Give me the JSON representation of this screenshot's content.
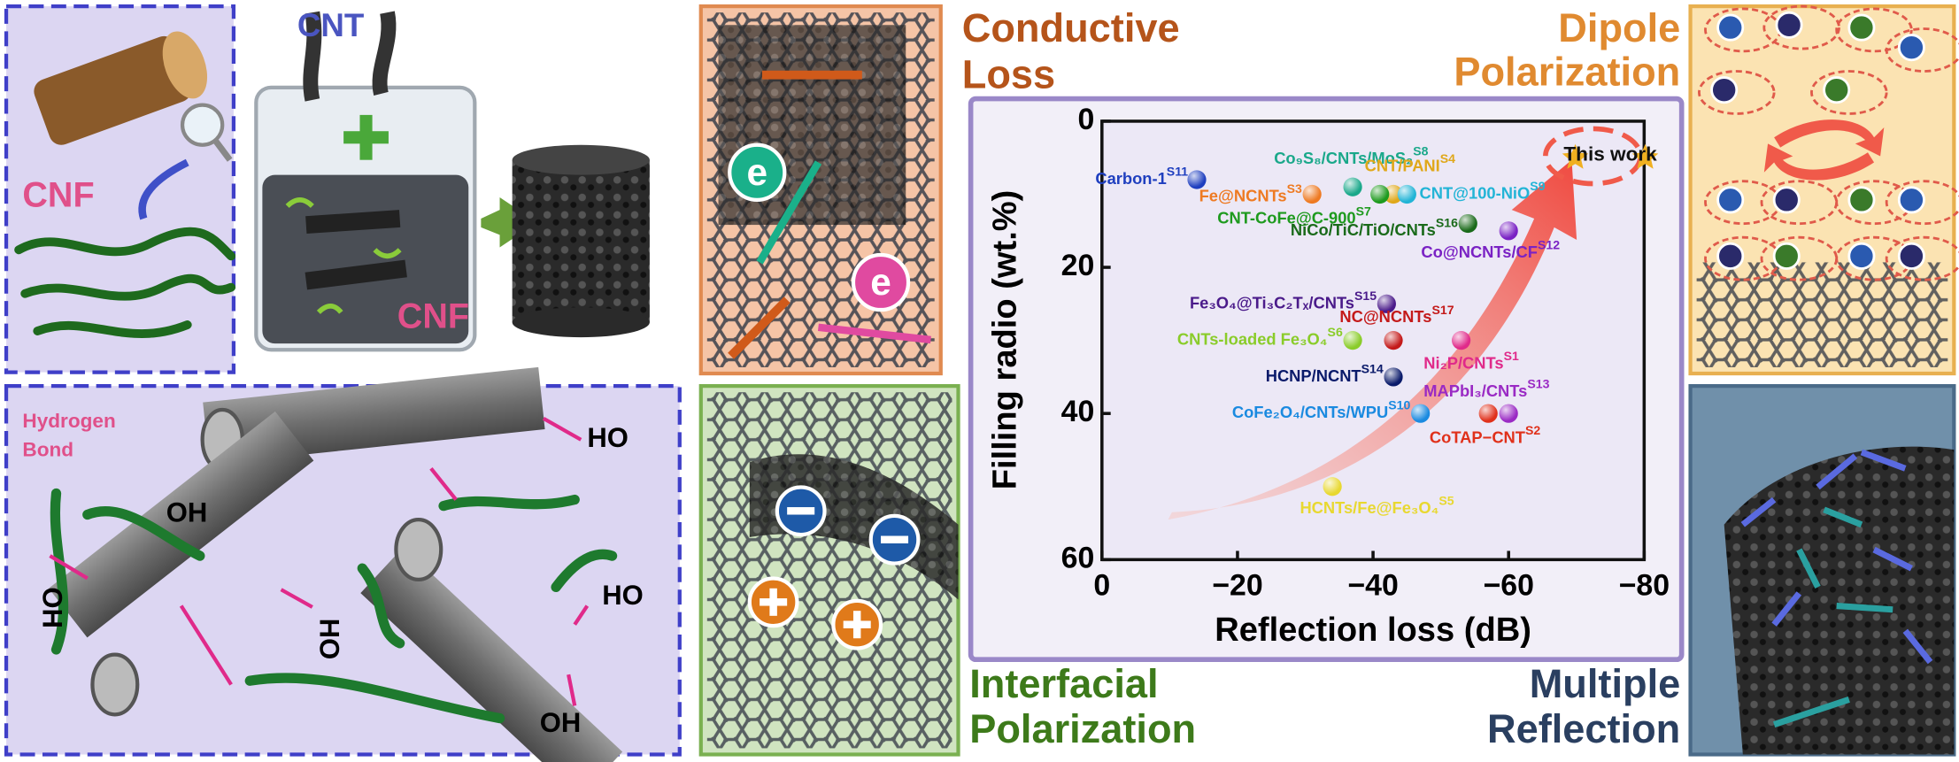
{
  "labels": {
    "cnt": "CNT",
    "cnf": [
      "CNF",
      "CNF"
    ],
    "hydrogen_bond": [
      "Hydrogen",
      "Bond"
    ],
    "hydroxyl": [
      "HO",
      "OH",
      "HO",
      "HO",
      "OH",
      "OH"
    ],
    "electron": [
      "e",
      "e"
    ],
    "conductive_loss": [
      "Conductive",
      "Loss"
    ],
    "dipole_polarization": [
      "Dipole",
      "Polarization"
    ],
    "interfacial_polarization": [
      "Interfacial",
      "Polarization"
    ],
    "multiple_reflection": [
      "Multiple",
      "Reflection"
    ]
  },
  "chart_data": {
    "type": "scatter",
    "xlabel": "Reflection loss (dB)",
    "ylabel": "Filling radio (wt.%)",
    "xlim": [
      0,
      -80
    ],
    "xticks": [
      0,
      {
        "value": -20,
        "label": "−20"
      },
      {
        "value": -40,
        "label": "−40"
      },
      {
        "value": -60,
        "label": "−60"
      },
      {
        "value": -80,
        "label": "−80"
      }
    ],
    "ylim": [
      60,
      0
    ],
    "yticks": [
      0,
      20,
      40,
      60
    ],
    "series": [
      {
        "name": "Carbon-1",
        "ref": "S11",
        "color": "#1f3fbf",
        "x": [
          -14
        ],
        "values": [
          8
        ]
      },
      {
        "name": "Co₉S₈/CNTs/MoS₂",
        "ref": "S8",
        "color": "#1aa88a",
        "x": [
          -37
        ],
        "values": [
          9
        ]
      },
      {
        "name": "CNT/PANI",
        "ref": "S4",
        "color": "#e0a81a",
        "x": [
          -43
        ],
        "values": [
          10
        ]
      },
      {
        "name": "Fe@NCNTs",
        "ref": "S3",
        "color": "#ee7a22",
        "x": [
          -31
        ],
        "values": [
          10
        ]
      },
      {
        "name": "CNT-CoFe@C-900",
        "ref": "S7",
        "color": "#1e9a1e",
        "x": [
          -41
        ],
        "values": [
          10
        ]
      },
      {
        "name": "CNT@100-NiO",
        "ref": "S9",
        "color": "#22b4d6",
        "x": [
          -45
        ],
        "values": [
          10
        ]
      },
      {
        "name": "NiCo/TiC/TiO/CNTs",
        "ref": "S16",
        "color": "#1a6a1a",
        "x": [
          -54
        ],
        "values": [
          14
        ]
      },
      {
        "name": "Co@NCNTs/CF",
        "ref": "S12",
        "color": "#7a22c4",
        "x": [
          -60
        ],
        "values": [
          15
        ]
      },
      {
        "name": "This work",
        "color": "#f0b020",
        "marker": "star",
        "x": [
          -75
        ],
        "values": [
          5
        ]
      },
      {
        "name": "Fe₃O₄@Ti₃C₂Tₓ/CNTs",
        "ref": "S15",
        "color": "#4a1a8a",
        "x": [
          -42
        ],
        "values": [
          25
        ]
      },
      {
        "name": "NC@NCNTs",
        "ref": "S17",
        "color": "#c41a1a",
        "x": [
          -43
        ],
        "values": [
          30
        ]
      },
      {
        "name": "CNTs-loaded Fe₃O₄",
        "ref": "S6",
        "color": "#8acc2a",
        "x": [
          -37
        ],
        "values": [
          30
        ]
      },
      {
        "name": "Ni₂P/CNTs",
        "ref": "S1",
        "color": "#e02a8a",
        "x": [
          -53
        ],
        "values": [
          30
        ]
      },
      {
        "name": "HCNP/NCNT",
        "ref": "S14",
        "color": "#0a1a6a",
        "x": [
          -43
        ],
        "values": [
          35
        ]
      },
      {
        "name": "CoFe₂O₄/CNTs/WPU",
        "ref": "S10",
        "color": "#1a8ae0",
        "x": [
          -47
        ],
        "values": [
          40
        ]
      },
      {
        "name": "MAPbI₃/CNTs",
        "ref": "S13",
        "color": "#9a2ac4",
        "x": [
          -60
        ],
        "values": [
          40
        ]
      },
      {
        "name": "CoTAP−CNT",
        "ref": "S2",
        "color": "#e0301a",
        "x": [
          -57
        ],
        "values": [
          40
        ]
      },
      {
        "name": "HCNTs/Fe@Fe₃O₄",
        "ref": "S5",
        "color": "#e8d830",
        "x": [
          -34
        ],
        "values": [
          50
        ]
      }
    ]
  }
}
